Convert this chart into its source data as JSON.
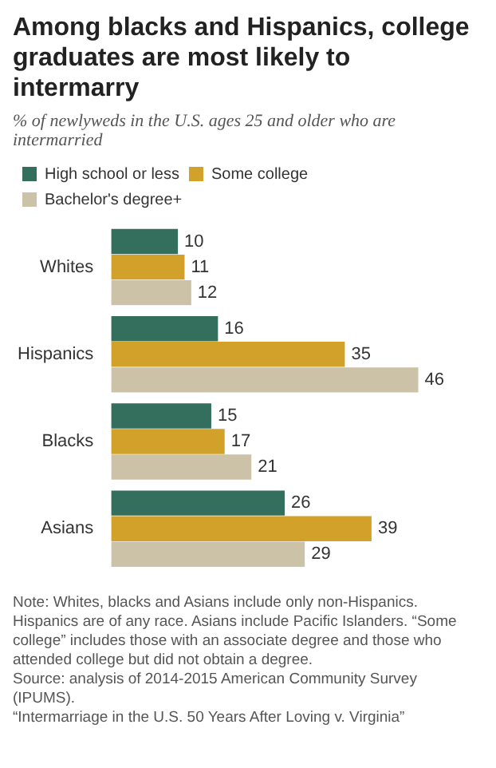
{
  "chart_data": {
    "type": "bar",
    "orientation": "horizontal",
    "title": "Among blacks and Hispanics, college graduates are most likely to intermarry",
    "subtitle": "% of newlyweds in the U.S. ages 25 and older who are intermarried",
    "categories": [
      "Whites",
      "Hispanics",
      "Blacks",
      "Asians"
    ],
    "series": [
      {
        "name": "High school or less",
        "color": "#346e5c",
        "values": [
          10,
          16,
          15,
          26
        ]
      },
      {
        "name": "Some college",
        "color": "#d1a12a",
        "values": [
          11,
          35,
          17,
          39
        ]
      },
      {
        "name": "Bachelor's degree+",
        "color": "#cbc2a8",
        "values": [
          12,
          46,
          21,
          29
        ]
      }
    ],
    "data_labels": true,
    "grid": false,
    "legend": "top left",
    "annotations": [
      "Note: Whites, blacks and Asians include only non-Hispanics. Hispanics are of any race. Asians include Pacific Islanders. “Some college” includes those with an associate degree and those who attended college but did not obtain a degree.",
      "Source: analysis of 2014-2015 American Community Survey (IPUMS).",
      "“Intermarriage in the U.S. 50 Years After Loving v. Virginia”"
    ]
  }
}
